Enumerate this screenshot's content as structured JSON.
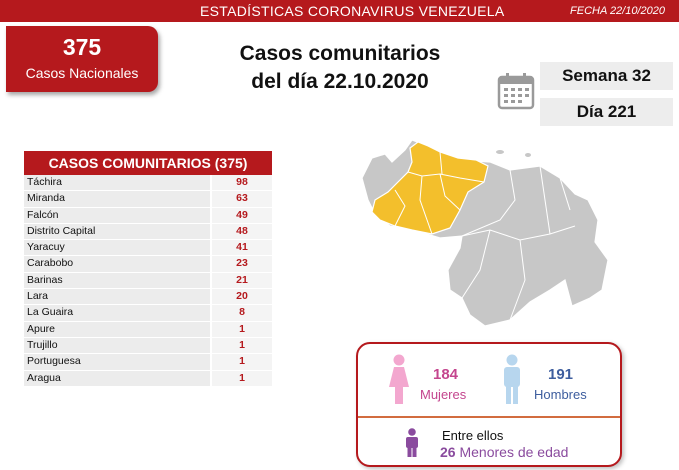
{
  "header": {
    "title": "ESTADÍSTICAS CORONAVIRUS VENEZUELA",
    "date": "FECHA 22/10/2020"
  },
  "national": {
    "count": "375",
    "label": "Casos Nacionales"
  },
  "headline": {
    "line1": "Casos comunitarios",
    "line2": "del día 22.10.2020"
  },
  "calendar": {
    "icon": "calendar-icon",
    "week": "Semana 32",
    "day": "Día 221"
  },
  "table": {
    "header": "CASOS COMUNITARIOS (375)",
    "rows": [
      {
        "state": "Táchira",
        "count": "98"
      },
      {
        "state": "Miranda",
        "count": "63"
      },
      {
        "state": "Falcón",
        "count": "49"
      },
      {
        "state": "Distrito Capital",
        "count": "48"
      },
      {
        "state": "Yaracuy",
        "count": "41"
      },
      {
        "state": "Carabobo",
        "count": "23"
      },
      {
        "state": "Barinas",
        "count": "21"
      },
      {
        "state": "Lara",
        "count": "20"
      },
      {
        "state": "La Guaira",
        "count": "8"
      },
      {
        "state": "Apure",
        "count": "1"
      },
      {
        "state": "Trujillo",
        "count": "1"
      },
      {
        "state": "Portuguesa",
        "count": "1"
      },
      {
        "state": "Aragua",
        "count": "1"
      }
    ]
  },
  "map": {
    "icon": "venezuela-map",
    "highlight_color": "#f3bf2c",
    "base_color": "#c7c7c7"
  },
  "demographics": {
    "female_count": "184",
    "female_label": "Mujeres",
    "male_count": "191",
    "male_label": "Hombres",
    "between_label": "Entre ellos",
    "minors_count": "26",
    "minors_label": "Menores de edad"
  },
  "colors": {
    "brand_red": "#b5191d",
    "female": "#c4458e",
    "male": "#3d5d9e",
    "minor": "#8a4b9e"
  }
}
